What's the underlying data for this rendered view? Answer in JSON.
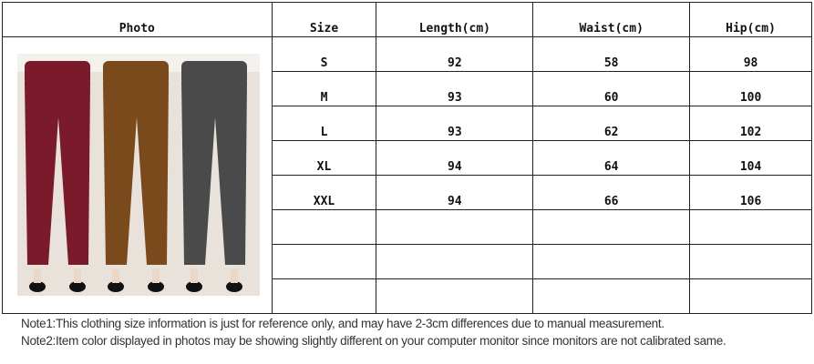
{
  "table": {
    "headers": [
      "Photo",
      "Size",
      "Length(cm)",
      "Waist(cm)",
      "Hip(cm)"
    ],
    "rows": [
      [
        "S",
        "92",
        "58",
        "98"
      ],
      [
        "M",
        "93",
        "60",
        "100"
      ],
      [
        "L",
        "93",
        "62",
        "102"
      ],
      [
        "XL",
        "94",
        "64",
        "104"
      ],
      [
        "XXL",
        "94",
        "66",
        "106"
      ],
      [
        "",
        "",
        "",
        ""
      ],
      [
        "",
        "",
        "",
        ""
      ],
      [
        "",
        "",
        "",
        ""
      ]
    ]
  },
  "photo": {
    "colors": [
      "#7a1a2a",
      "#7a4a1c",
      "#4a4a4a"
    ]
  },
  "notes": [
    "Note1:This clothing size information is just for reference only, and may have 2-3cm differences due to manual measurement.",
    "Note2:Item color displayed in photos may be showing slightly different on your computer monitor since monitors are not calibrated same."
  ]
}
